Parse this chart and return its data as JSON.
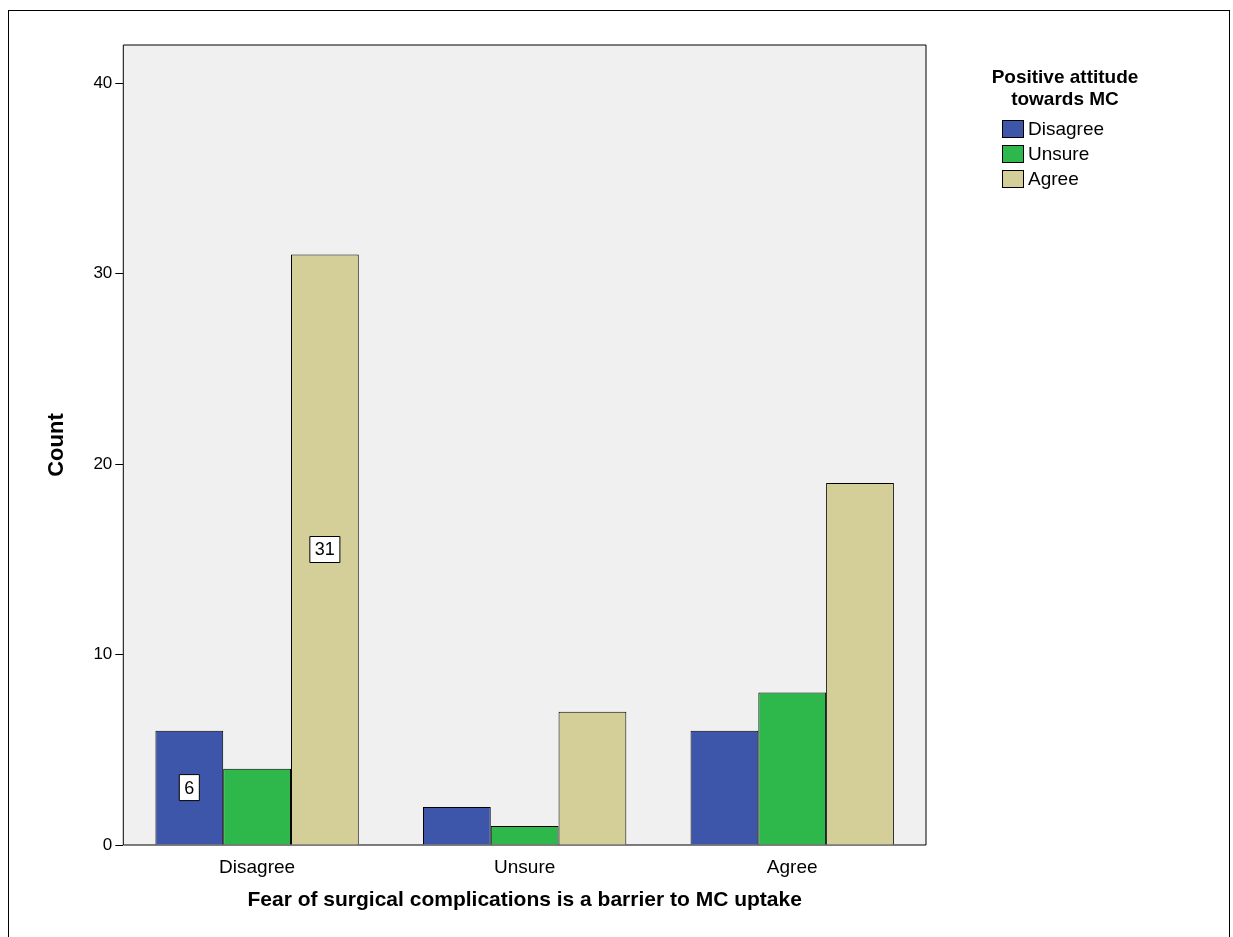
{
  "chart_data": {
    "type": "bar",
    "xlabel": "Fear of surgical complications is a barrier to MC uptake",
    "ylabel": "Count",
    "legend_title": "Positive attitude towards MC",
    "legend": "top right",
    "grid": false,
    "categories": [
      "Disagree",
      "Unsure",
      "Agree"
    ],
    "series": [
      {
        "name": "Disagree",
        "color": "#3d56a9",
        "values": [
          6,
          2,
          6
        ],
        "value_labels": [
          "6",
          null,
          null
        ]
      },
      {
        "name": "Unsure",
        "color": "#2eb84b",
        "values": [
          4,
          1,
          8
        ],
        "value_labels": [
          null,
          null,
          null
        ]
      },
      {
        "name": "Agree",
        "color": "#d4cf99",
        "values": [
          31,
          7,
          19
        ],
        "value_labels": [
          "31",
          null,
          null
        ]
      }
    ],
    "ylim": [
      0,
      42
    ],
    "yticks": [
      0,
      10,
      20,
      30,
      40
    ]
  }
}
